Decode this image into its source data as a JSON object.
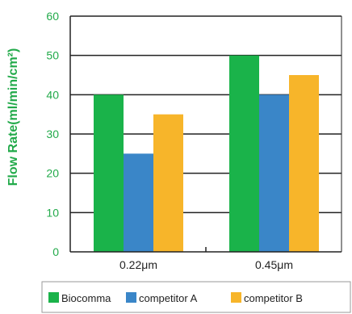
{
  "colors": {
    "axis_text": "#22aa4a",
    "grid": "#222222",
    "category_text": "#222222",
    "legend_border": "#999999"
  },
  "chart_data": {
    "type": "bar",
    "categories": [
      "0.22μm",
      "0.45μm"
    ],
    "series": [
      {
        "name": "Biocomma",
        "values": [
          40,
          50
        ],
        "color": "#1ab34a"
      },
      {
        "name": "competitor A",
        "values": [
          25,
          40
        ],
        "color": "#3a86c8"
      },
      {
        "name": "competitor B",
        "values": [
          35,
          45
        ],
        "color": "#f7b52a"
      }
    ],
    "title": "",
    "xlabel": "",
    "ylabel": "Flow Rate(ml/min/cm²)",
    "ylim": [
      0,
      60
    ],
    "yticks": [
      "0",
      "10",
      "20",
      "30",
      "40",
      "50",
      "60"
    ],
    "grid": true,
    "legend_position": "bottom"
  }
}
